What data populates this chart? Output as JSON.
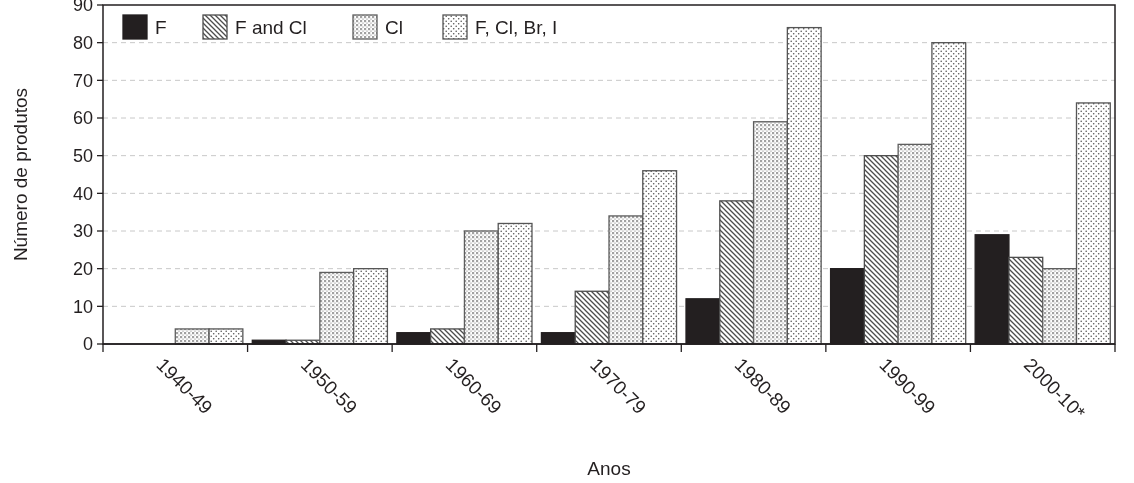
{
  "chart_data": {
    "type": "bar",
    "xlabel": "Anos",
    "ylabel": "Número de produtos",
    "categories": [
      "1940-49",
      "1950-59",
      "1960-69",
      "1970-79",
      "1980-89",
      "1990-99",
      "2000-10*"
    ],
    "series": [
      {
        "name": "F",
        "color": "#231f20",
        "values": [
          0,
          1,
          3,
          3,
          12,
          20,
          29
        ]
      },
      {
        "name": "F and Cl",
        "color": "#4d4d4d",
        "values": [
          0,
          1,
          4,
          14,
          38,
          50,
          23
        ]
      },
      {
        "name": "Cl",
        "color": "#5e5e5e",
        "values": [
          4,
          19,
          30,
          34,
          59,
          53,
          20
        ]
      },
      {
        "name": "F, Cl, Br, I",
        "color": "#555555",
        "values": [
          4,
          20,
          32,
          46,
          84,
          80,
          64
        ]
      }
    ],
    "ylim": [
      0,
      90
    ],
    "yticks": [
      0,
      10,
      20,
      30,
      40,
      50,
      60,
      70,
      80,
      90
    ],
    "grid": "y",
    "legend": "top left"
  }
}
